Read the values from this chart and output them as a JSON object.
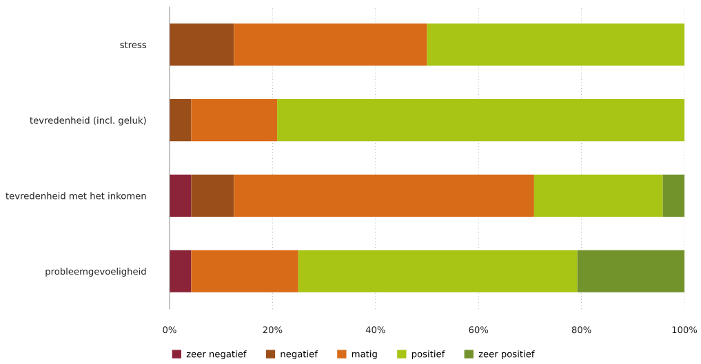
{
  "chart_data": {
    "type": "bar",
    "orientation": "horizontal",
    "stacked": true,
    "categories": [
      "stress",
      "tevredenheid (incl. geluk)",
      "tevredenheid met het inkomen",
      "probleemgevoeligheid"
    ],
    "series": [
      {
        "name": "zeer negatief",
        "color": "#8b2339",
        "values": [
          0,
          0,
          4.2,
          4.2
        ]
      },
      {
        "name": "negatief",
        "color": "#9a4e1a",
        "values": [
          12.5,
          4.2,
          8.3,
          0
        ]
      },
      {
        "name": "matig",
        "color": "#d86b18",
        "values": [
          37.5,
          16.7,
          58.3,
          20.8
        ]
      },
      {
        "name": "positief",
        "color": "#a8c414",
        "values": [
          50,
          79.1,
          25,
          54.2
        ]
      },
      {
        "name": "zeer positief",
        "color": "#72922b",
        "values": [
          0,
          0,
          4.2,
          20.8
        ]
      }
    ],
    "xlim": [
      0,
      100
    ],
    "xticks": [
      {
        "value": 0,
        "label": "0%"
      },
      {
        "value": 20,
        "label": "20%"
      },
      {
        "value": 40,
        "label": "40%"
      },
      {
        "value": 60,
        "label": "60%"
      },
      {
        "value": 80,
        "label": "80%"
      },
      {
        "value": 100,
        "label": "100%"
      }
    ],
    "grid": "x",
    "legend": "bottom"
  }
}
